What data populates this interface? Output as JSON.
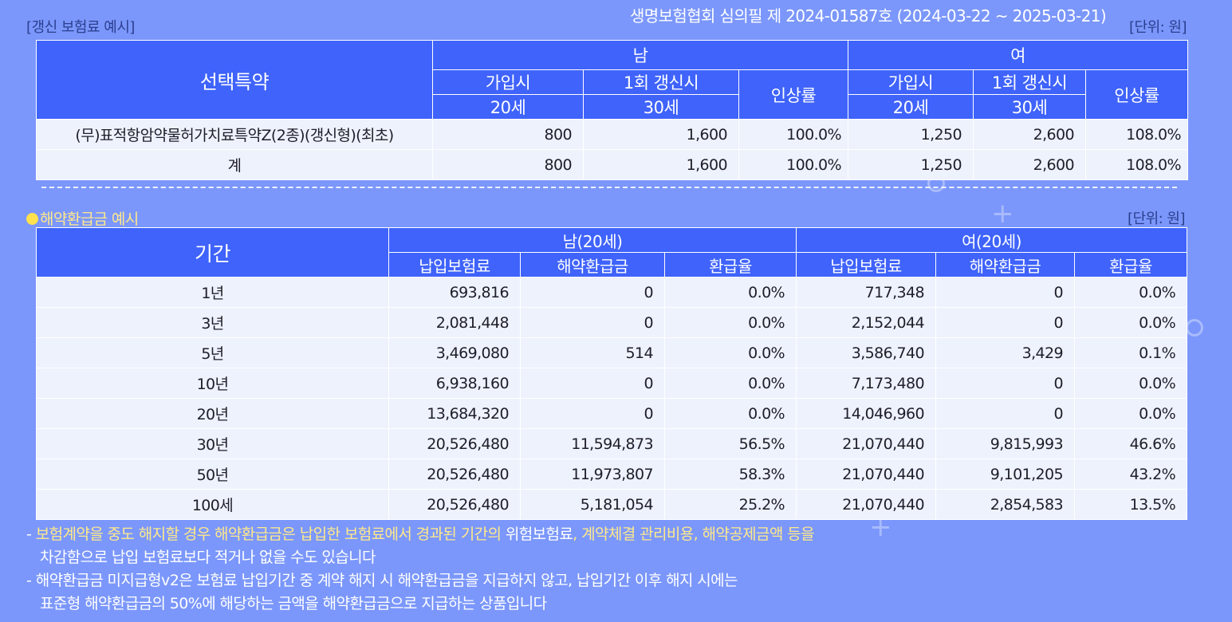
{
  "header": {
    "left_label": "[갱신 보험료 예시]",
    "approval": "생명보험협회 심의필 제 2024-01587호 (2024-03-22 ~ 2025-03-21)",
    "unit": "[단위: 원]"
  },
  "renewal_table": {
    "col_rider": "선택특약",
    "male": "남",
    "female": "여",
    "join": "가입시",
    "renew": "1회 갱신시",
    "rate": "인상률",
    "age_join": "20세",
    "age_renew": "30세",
    "rows": [
      {
        "name": "(무)표적항암약물허가치료특약Z(2종)(갱신형)(최초)",
        "m_join": "800",
        "m_renew": "1,600",
        "m_rate": "100.0%",
        "f_join": "1,250",
        "f_renew": "2,600",
        "f_rate": "108.0%"
      },
      {
        "name": "계",
        "m_join": "800",
        "m_renew": "1,600",
        "m_rate": "100.0%",
        "f_join": "1,250",
        "f_renew": "2,600",
        "f_rate": "108.0%"
      }
    ]
  },
  "refund_section": {
    "title": "해약환급금 예시",
    "unit": "[단위: 원]"
  },
  "refund_table": {
    "col_period": "기간",
    "male": "남(20세)",
    "female": "여(20세)",
    "paid": "납입보험료",
    "refund": "해약환급금",
    "ratio": "환급율",
    "rows": [
      {
        "period": "1년",
        "m_paid": "693,816",
        "m_refund": "0",
        "m_ratio": "0.0%",
        "f_paid": "717,348",
        "f_refund": "0",
        "f_ratio": "0.0%"
      },
      {
        "period": "3년",
        "m_paid": "2,081,448",
        "m_refund": "0",
        "m_ratio": "0.0%",
        "f_paid": "2,152,044",
        "f_refund": "0",
        "f_ratio": "0.0%"
      },
      {
        "period": "5년",
        "m_paid": "3,469,080",
        "m_refund": "514",
        "m_ratio": "0.0%",
        "f_paid": "3,586,740",
        "f_refund": "3,429",
        "f_ratio": "0.1%"
      },
      {
        "period": "10년",
        "m_paid": "6,938,160",
        "m_refund": "0",
        "m_ratio": "0.0%",
        "f_paid": "7,173,480",
        "f_refund": "0",
        "f_ratio": "0.0%"
      },
      {
        "period": "20년",
        "m_paid": "13,684,320",
        "m_refund": "0",
        "m_ratio": "0.0%",
        "f_paid": "14,046,960",
        "f_refund": "0",
        "f_ratio": "0.0%"
      },
      {
        "period": "30년",
        "m_paid": "20,526,480",
        "m_refund": "11,594,873",
        "m_ratio": "56.5%",
        "f_paid": "21,070,440",
        "f_refund": "9,815,993",
        "f_ratio": "46.6%"
      },
      {
        "period": "50년",
        "m_paid": "20,526,480",
        "m_refund": "11,973,807",
        "m_ratio": "58.3%",
        "f_paid": "21,070,440",
        "f_refund": "9,101,205",
        "f_ratio": "43.2%"
      },
      {
        "period": "100세",
        "m_paid": "20,526,480",
        "m_refund": "5,181,054",
        "m_ratio": "25.2%",
        "f_paid": "21,070,440",
        "f_refund": "2,854,583",
        "f_ratio": "13.5%"
      }
    ]
  },
  "notes": {
    "n1_prefix": "- ",
    "n1_hl_a": "보험계약을 중도 해지할 경우 해약환급금은 납입한 보험료에서 경과된 기간의 ",
    "n1_plain": "위험보험료",
    "n1_hl_b": ", 계약체결 관리비용, 해약공제금액 등을",
    "n1_line2": "차감함으로 납입 보험료보다 적거나 없을 수도 있습니다",
    "n2_line1": "- 해약환급금 미지급형v2은 보험료 납입기간 중 계약 해지 시 해약환급금을 지급하지 않고, 납입기간 이후 해지 시에는",
    "n2_line2": "표준형 해약환급금의 50%에 해당하는 금액을 해약환급금으로 지급하는 상품입니다"
  },
  "colors": {
    "background": "#7b97fb",
    "header_blue": "#3f63fb",
    "cell_bg": "#eef2fd",
    "highlight_yellow": "#ffe98a"
  }
}
